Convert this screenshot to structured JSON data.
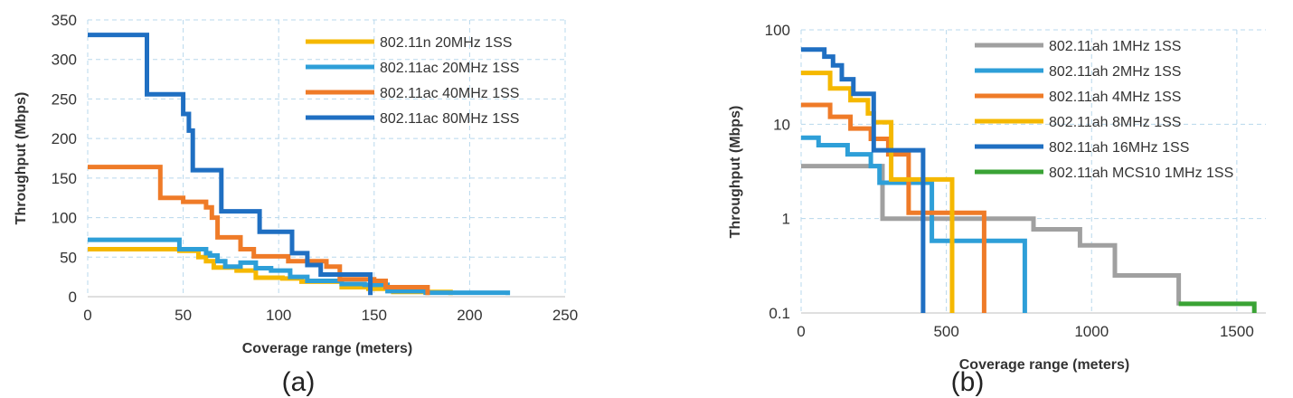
{
  "chart_data": [
    {
      "type": "line",
      "panel_label": "(a)",
      "xlabel": "Coverage range (meters)",
      "ylabel": "Throughput (Mbps)",
      "xlim": [
        0,
        250
      ],
      "ylim": [
        0,
        350
      ],
      "x_ticks": [
        0,
        50,
        100,
        150,
        200,
        250
      ],
      "y_ticks": [
        0,
        50,
        100,
        150,
        200,
        250,
        300,
        350
      ],
      "y_scale": "linear",
      "grid": true,
      "legend_position": "top-right",
      "series": [
        {
          "name": "802.11n 20MHz 1SS",
          "color": "#f5b800",
          "points": [
            [
              0,
              60
            ],
            [
              48,
              60
            ],
            [
              48,
              58
            ],
            [
              58,
              58
            ],
            [
              58,
              50
            ],
            [
              62,
              50
            ],
            [
              62,
              45
            ],
            [
              66,
              45
            ],
            [
              66,
              37
            ],
            [
              78,
              37
            ],
            [
              78,
              33
            ],
            [
              88,
              33
            ],
            [
              88,
              24
            ],
            [
              102,
              24
            ],
            [
              102,
              23
            ],
            [
              112,
              23
            ],
            [
              112,
              19
            ],
            [
              133,
              19
            ],
            [
              133,
              12
            ],
            [
              147,
              12
            ],
            [
              147,
              10
            ],
            [
              160,
              10
            ],
            [
              160,
              6
            ],
            [
              190,
              6
            ],
            [
              190,
              2
            ]
          ]
        },
        {
          "name": "802.11ac 20MHz 1SS",
          "color": "#2e9fd8",
          "points": [
            [
              0,
              72
            ],
            [
              48,
              72
            ],
            [
              48,
              60
            ],
            [
              62,
              60
            ],
            [
              62,
              55
            ],
            [
              64,
              55
            ],
            [
              64,
              52
            ],
            [
              68,
              52
            ],
            [
              68,
              45
            ],
            [
              72,
              45
            ],
            [
              72,
              38
            ],
            [
              80,
              38
            ],
            [
              80,
              43
            ],
            [
              88,
              43
            ],
            [
              88,
              36
            ],
            [
              96,
              36
            ],
            [
              96,
              33
            ],
            [
              106,
              33
            ],
            [
              106,
              25
            ],
            [
              115,
              25
            ],
            [
              115,
              20
            ],
            [
              133,
              20
            ],
            [
              133,
              16
            ],
            [
              145,
              16
            ],
            [
              145,
              15
            ],
            [
              157,
              15
            ],
            [
              157,
              7
            ],
            [
              177,
              7
            ],
            [
              177,
              5
            ],
            [
              220,
              5
            ],
            [
              220,
              2
            ]
          ]
        },
        {
          "name": "802.11ac 40MHz 1SS",
          "color": "#ef7b28",
          "points": [
            [
              0,
              164
            ],
            [
              38,
              164
            ],
            [
              38,
              125
            ],
            [
              50,
              125
            ],
            [
              50,
              120
            ],
            [
              62,
              120
            ],
            [
              62,
              113
            ],
            [
              65,
              113
            ],
            [
              65,
              100
            ],
            [
              68,
              100
            ],
            [
              68,
              75
            ],
            [
              80,
              75
            ],
            [
              80,
              60
            ],
            [
              87,
              60
            ],
            [
              87,
              51
            ],
            [
              105,
              51
            ],
            [
              105,
              45
            ],
            [
              125,
              45
            ],
            [
              125,
              38
            ],
            [
              132,
              38
            ],
            [
              132,
              22
            ],
            [
              150,
              22
            ],
            [
              150,
              20
            ],
            [
              156,
              20
            ],
            [
              156,
              12
            ],
            [
              178,
              12
            ],
            [
              178,
              2
            ]
          ]
        },
        {
          "name": "802.11ac 80MHz 1SS",
          "color": "#1f6fc2",
          "points": [
            [
              0,
              331
            ],
            [
              31,
              331
            ],
            [
              31,
              256
            ],
            [
              50,
              256
            ],
            [
              50,
              231
            ],
            [
              53,
              231
            ],
            [
              53,
              210
            ],
            [
              55,
              210
            ],
            [
              55,
              160
            ],
            [
              70,
              160
            ],
            [
              70,
              108
            ],
            [
              90,
              108
            ],
            [
              90,
              82
            ],
            [
              107,
              82
            ],
            [
              107,
              55
            ],
            [
              115,
              55
            ],
            [
              115,
              40
            ],
            [
              122,
              40
            ],
            [
              122,
              28
            ],
            [
              148,
              28
            ],
            [
              148,
              2
            ]
          ]
        }
      ]
    },
    {
      "type": "line",
      "panel_label": "(b)",
      "xlabel": "Coverage range (meters)",
      "ylabel": "Throughput (Mbps)",
      "xlim": [
        0,
        1600
      ],
      "ylim": [
        0.1,
        100
      ],
      "x_ticks": [
        0,
        500,
        1000,
        1500
      ],
      "y_ticks": [
        0.1,
        1,
        10,
        100
      ],
      "y_scale": "log",
      "grid": true,
      "legend_position": "top-right",
      "series": [
        {
          "name": "802.11ah 1MHz 1SS",
          "color": "#a0a0a0",
          "points": [
            [
              0,
              3.6
            ],
            [
              280,
              3.6
            ],
            [
              280,
              1.0
            ],
            [
              800,
              1.0
            ],
            [
              800,
              0.77
            ],
            [
              960,
              0.77
            ],
            [
              960,
              0.52
            ],
            [
              1080,
              0.52
            ],
            [
              1080,
              0.25
            ],
            [
              1300,
              0.25
            ],
            [
              1300,
              0.12
            ]
          ]
        },
        {
          "name": "802.11ah 2MHz 1SS",
          "color": "#2e9fd8",
          "points": [
            [
              0,
              7.2
            ],
            [
              60,
              7.2
            ],
            [
              60,
              6.0
            ],
            [
              160,
              6.0
            ],
            [
              160,
              4.8
            ],
            [
              240,
              4.8
            ],
            [
              240,
              3.6
            ],
            [
              270,
              3.6
            ],
            [
              270,
              2.4
            ],
            [
              450,
              2.4
            ],
            [
              450,
              0.58
            ],
            [
              770,
              0.58
            ],
            [
              770,
              0.1
            ]
          ]
        },
        {
          "name": "802.11ah 4MHz 1SS",
          "color": "#ef7b28",
          "points": [
            [
              0,
              16
            ],
            [
              100,
              16
            ],
            [
              100,
              12
            ],
            [
              170,
              12
            ],
            [
              170,
              9
            ],
            [
              240,
              9
            ],
            [
              240,
              7
            ],
            [
              300,
              7
            ],
            [
              300,
              4.8
            ],
            [
              370,
              4.8
            ],
            [
              370,
              1.15
            ],
            [
              630,
              1.15
            ],
            [
              630,
              0.1
            ]
          ]
        },
        {
          "name": "802.11ah 8MHz 1SS",
          "color": "#f5b800",
          "points": [
            [
              0,
              35
            ],
            [
              100,
              35
            ],
            [
              100,
              24
            ],
            [
              170,
              24
            ],
            [
              170,
              18
            ],
            [
              230,
              18
            ],
            [
              230,
              13
            ],
            [
              250,
              13
            ],
            [
              250,
              10.5
            ],
            [
              310,
              10.5
            ],
            [
              310,
              2.6
            ],
            [
              520,
              2.6
            ],
            [
              520,
              0.1
            ]
          ]
        },
        {
          "name": "802.11ah 16MHz 1SS",
          "color": "#1f6fc2",
          "points": [
            [
              0,
              62
            ],
            [
              80,
              62
            ],
            [
              80,
              52
            ],
            [
              110,
              52
            ],
            [
              110,
              42
            ],
            [
              140,
              42
            ],
            [
              140,
              30
            ],
            [
              180,
              30
            ],
            [
              180,
              21
            ],
            [
              250,
              21
            ],
            [
              250,
              5.3
            ],
            [
              420,
              5.3
            ],
            [
              420,
              0.1
            ]
          ]
        },
        {
          "name": "802.11ah MCS10 1MHz 1SS",
          "color": "#3aa335",
          "points": [
            [
              1300,
              0.125
            ],
            [
              1560,
              0.125
            ],
            [
              1560,
              0.1
            ]
          ]
        }
      ]
    }
  ]
}
